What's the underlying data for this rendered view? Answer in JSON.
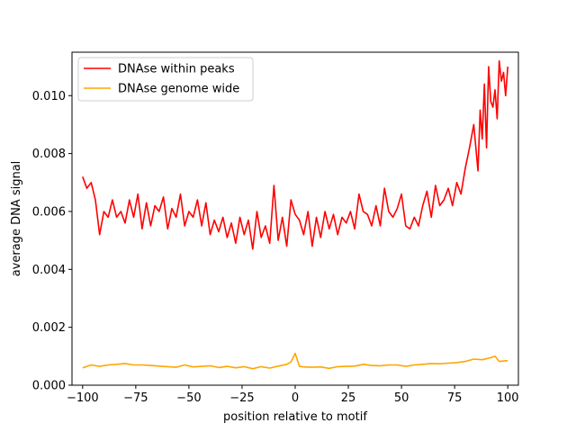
{
  "chart_data": {
    "type": "line",
    "xlabel": "position relative to motif",
    "ylabel": "average DNA signal",
    "xlim": [
      -105,
      105
    ],
    "ylim": [
      0,
      0.0115
    ],
    "x_ticks": [
      -100,
      -75,
      -50,
      -25,
      0,
      25,
      50,
      75,
      100
    ],
    "x_tick_labels": [
      "−100",
      "−75",
      "−50",
      "−25",
      "0",
      "25",
      "50",
      "75",
      "100"
    ],
    "y_ticks": [
      0,
      0.002,
      0.004,
      0.006,
      0.008,
      0.01
    ],
    "y_tick_labels": [
      "0.000",
      "0.002",
      "0.004",
      "0.006",
      "0.008",
      "0.010"
    ],
    "grid": false,
    "legend_position": "top-left",
    "series": [
      {
        "name": "DNAse within peaks",
        "color": "#ff0000",
        "x": [
          -100,
          -98,
          -96,
          -94,
          -92,
          -90,
          -88,
          -86,
          -84,
          -82,
          -80,
          -78,
          -76,
          -74,
          -72,
          -70,
          -68,
          -66,
          -64,
          -62,
          -60,
          -58,
          -56,
          -54,
          -52,
          -50,
          -48,
          -46,
          -44,
          -42,
          -40,
          -38,
          -36,
          -34,
          -32,
          -30,
          -28,
          -26,
          -24,
          -22,
          -20,
          -18,
          -16,
          -14,
          -12,
          -10,
          -8,
          -6,
          -4,
          -2,
          0,
          2,
          4,
          6,
          8,
          10,
          12,
          14,
          16,
          18,
          20,
          22,
          24,
          26,
          28,
          30,
          32,
          34,
          36,
          38,
          40,
          42,
          44,
          46,
          48,
          50,
          52,
          54,
          56,
          58,
          60,
          62,
          64,
          66,
          68,
          70,
          72,
          74,
          76,
          78,
          80,
          82,
          84,
          86,
          87,
          88,
          89,
          90,
          91,
          92,
          93,
          94,
          95,
          96,
          97,
          98,
          99,
          100
        ],
        "y": [
          0.0072,
          0.0068,
          0.007,
          0.0064,
          0.0052,
          0.006,
          0.0058,
          0.0064,
          0.0058,
          0.006,
          0.0056,
          0.0064,
          0.0058,
          0.0066,
          0.0054,
          0.0063,
          0.0055,
          0.0062,
          0.006,
          0.0065,
          0.0054,
          0.0061,
          0.0058,
          0.0066,
          0.0055,
          0.006,
          0.0058,
          0.0064,
          0.0055,
          0.0063,
          0.0052,
          0.0057,
          0.0053,
          0.0058,
          0.0051,
          0.0056,
          0.0049,
          0.0058,
          0.0052,
          0.0057,
          0.0047,
          0.006,
          0.0051,
          0.0055,
          0.0049,
          0.0069,
          0.005,
          0.0058,
          0.0048,
          0.0064,
          0.0059,
          0.0057,
          0.0052,
          0.006,
          0.0048,
          0.0058,
          0.0051,
          0.006,
          0.0054,
          0.0059,
          0.0052,
          0.0058,
          0.0056,
          0.006,
          0.0054,
          0.0066,
          0.006,
          0.0059,
          0.0055,
          0.0062,
          0.0055,
          0.0068,
          0.006,
          0.0058,
          0.0061,
          0.0066,
          0.0055,
          0.0054,
          0.0058,
          0.0055,
          0.0062,
          0.0067,
          0.0058,
          0.0069,
          0.0062,
          0.0064,
          0.0068,
          0.0062,
          0.007,
          0.0066,
          0.0075,
          0.0082,
          0.009,
          0.0074,
          0.0095,
          0.0085,
          0.0104,
          0.0082,
          0.011,
          0.0098,
          0.0096,
          0.0102,
          0.0092,
          0.0112,
          0.0105,
          0.0108,
          0.01,
          0.011
        ]
      },
      {
        "name": "DNAse genome wide",
        "color": "#ffa500",
        "x": [
          -100,
          -96,
          -92,
          -88,
          -84,
          -80,
          -76,
          -72,
          -68,
          -64,
          -60,
          -56,
          -52,
          -48,
          -44,
          -40,
          -36,
          -32,
          -28,
          -24,
          -20,
          -16,
          -12,
          -8,
          -4,
          -2,
          0,
          2,
          4,
          8,
          12,
          16,
          20,
          24,
          28,
          32,
          36,
          40,
          44,
          48,
          52,
          56,
          60,
          64,
          68,
          72,
          76,
          80,
          84,
          88,
          92,
          94,
          96,
          100
        ],
        "y": [
          0.0006,
          0.0007,
          0.00065,
          0.0007,
          0.00072,
          0.00075,
          0.0007,
          0.0007,
          0.00068,
          0.00066,
          0.00064,
          0.00062,
          0.0007,
          0.00063,
          0.00065,
          0.00067,
          0.00061,
          0.00065,
          0.0006,
          0.00064,
          0.00057,
          0.00064,
          0.00059,
          0.00066,
          0.00072,
          0.0008,
          0.0011,
          0.00065,
          0.00063,
          0.00062,
          0.00063,
          0.00058,
          0.00064,
          0.00065,
          0.00066,
          0.00072,
          0.00068,
          0.00067,
          0.0007,
          0.0007,
          0.00065,
          0.0007,
          0.00072,
          0.00075,
          0.00074,
          0.00076,
          0.00078,
          0.00082,
          0.0009,
          0.00088,
          0.00095,
          0.001,
          0.00082,
          0.00085
        ]
      }
    ]
  }
}
